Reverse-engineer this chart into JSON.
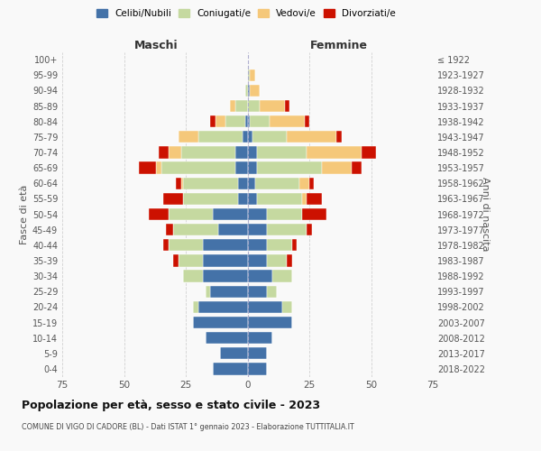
{
  "age_groups": [
    "0-4",
    "5-9",
    "10-14",
    "15-19",
    "20-24",
    "25-29",
    "30-34",
    "35-39",
    "40-44",
    "45-49",
    "50-54",
    "55-59",
    "60-64",
    "65-69",
    "70-74",
    "75-79",
    "80-84",
    "85-89",
    "90-94",
    "95-99",
    "100+"
  ],
  "birth_years": [
    "2018-2022",
    "2013-2017",
    "2008-2012",
    "2003-2007",
    "1998-2002",
    "1993-1997",
    "1988-1992",
    "1983-1987",
    "1978-1982",
    "1973-1977",
    "1968-1972",
    "1963-1967",
    "1958-1962",
    "1953-1957",
    "1948-1952",
    "1943-1947",
    "1938-1942",
    "1933-1937",
    "1928-1932",
    "1923-1927",
    "≤ 1922"
  ],
  "maschi": {
    "celibi": [
      14,
      11,
      17,
      22,
      20,
      15,
      18,
      18,
      18,
      12,
      14,
      4,
      4,
      5,
      5,
      2,
      1,
      0,
      0,
      0,
      0
    ],
    "coniugati": [
      0,
      0,
      0,
      0,
      2,
      2,
      8,
      10,
      14,
      18,
      18,
      22,
      22,
      30,
      22,
      18,
      8,
      5,
      1,
      0,
      0
    ],
    "vedovi": [
      0,
      0,
      0,
      0,
      0,
      0,
      0,
      0,
      0,
      0,
      0,
      0,
      1,
      2,
      5,
      8,
      4,
      2,
      0,
      0,
      0
    ],
    "divorziati": [
      0,
      0,
      0,
      0,
      0,
      0,
      0,
      2,
      2,
      3,
      8,
      8,
      2,
      7,
      4,
      0,
      2,
      0,
      0,
      0,
      0
    ]
  },
  "femmine": {
    "nubili": [
      8,
      8,
      10,
      18,
      14,
      8,
      10,
      8,
      8,
      8,
      8,
      4,
      3,
      4,
      4,
      2,
      1,
      0,
      1,
      0,
      0
    ],
    "coniugate": [
      0,
      0,
      0,
      0,
      4,
      4,
      8,
      8,
      10,
      16,
      14,
      18,
      18,
      26,
      20,
      14,
      8,
      5,
      0,
      1,
      0
    ],
    "vedove": [
      0,
      0,
      0,
      0,
      0,
      0,
      0,
      0,
      0,
      0,
      0,
      2,
      4,
      12,
      22,
      20,
      14,
      10,
      4,
      2,
      0
    ],
    "divorziate": [
      0,
      0,
      0,
      0,
      0,
      0,
      0,
      2,
      2,
      2,
      10,
      6,
      2,
      4,
      6,
      2,
      2,
      2,
      0,
      0,
      0
    ]
  },
  "colors": {
    "celibi_nubili": "#4472a8",
    "coniugati_e": "#c5d9a0",
    "vedovi_e": "#f5c87a",
    "divorziati_e": "#cc1100"
  },
  "xlim": 75,
  "title": "Popolazione per età, sesso e stato civile - 2023",
  "subtitle": "COMUNE DI VIGO DI CADORE (BL) - Dati ISTAT 1° gennaio 2023 - Elaborazione TUTTITALIA.IT",
  "ylabel_left": "Fasce di età",
  "ylabel_right": "Anni di nascita",
  "xlabel_left": "Maschi",
  "xlabel_right": "Femmine",
  "legend_labels": [
    "Celibi/Nubili",
    "Coniugati/e",
    "Vedovi/e",
    "Divorziati/e"
  ],
  "bg_color": "#f9f9f9",
  "grid_color": "#cccccc"
}
